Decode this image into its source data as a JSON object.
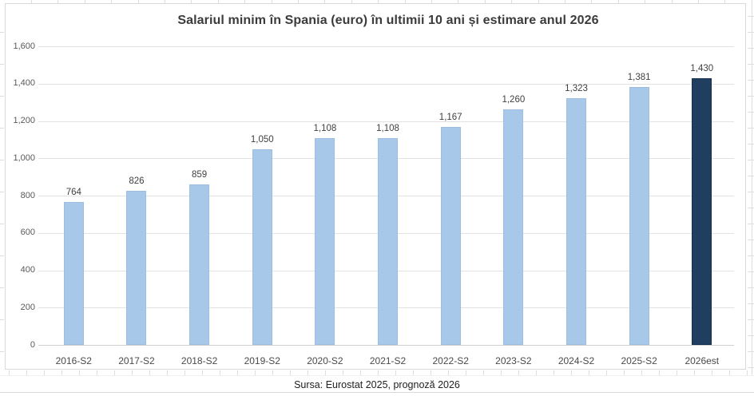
{
  "chart_data": {
    "type": "bar",
    "title": "Salariul minim în Spania (euro) în ultimii 10 ani și estimare anul 2026",
    "categories": [
      "2016-S2",
      "2017-S2",
      "2018-S2",
      "2019-S2",
      "2020-S2",
      "2021-S2",
      "2022-S2",
      "2023-S2",
      "2024-S2",
      "2025-S2",
      "2026est"
    ],
    "values": [
      764,
      826,
      859,
      1050,
      1108,
      1108,
      1167,
      1260,
      1323,
      1381,
      1430
    ],
    "value_labels": [
      "764",
      "826",
      "859",
      "1,050",
      "1,108",
      "1,108",
      "1,167",
      "1,260",
      "1,323",
      "1,381",
      "1,430"
    ],
    "xlabel": "",
    "ylabel": "",
    "ylim": [
      0,
      1600
    ],
    "ytick_interval": 200,
    "ytick_labels": [
      "0",
      "200",
      "400",
      "600",
      "800",
      "1,000",
      "1,200",
      "1,400",
      "1,600"
    ],
    "grid": true,
    "legend": "none",
    "highlight_index": 10,
    "source_note": "Sursa: Eurostat 2025, prognoză 2026"
  },
  "colors": {
    "bar_fill": "#A8C8EA",
    "bar_edge": "#9CBEE0",
    "highlight_fill": "#1F3E60",
    "highlight_edge": "#16314E",
    "gridline": "#E2E2E2",
    "axis_line": "#CFCFCF",
    "title_text": "#3B3B3B",
    "tick_text": "#595959",
    "value_text": "#404040",
    "sheet_grid": "#DEDEDE"
  }
}
